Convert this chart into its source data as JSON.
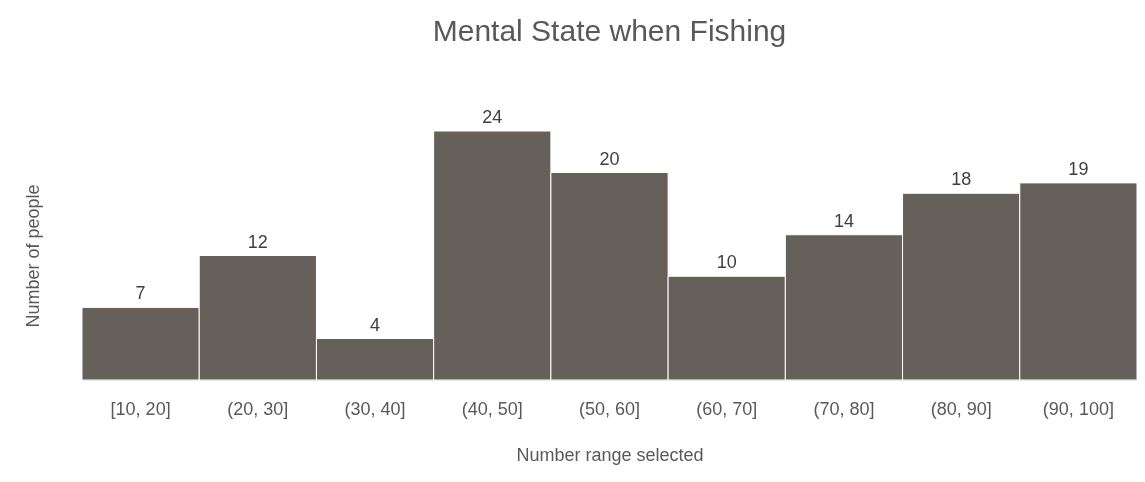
{
  "chart_data": {
    "type": "bar",
    "title": "Mental State when Fishing",
    "xlabel": "Number range selected",
    "ylabel": "Number of people",
    "categories": [
      "[10, 20]",
      "(20, 30]",
      "(30, 40]",
      "(40, 50]",
      "(50, 60]",
      "(60, 70]",
      "(70, 80]",
      "(80, 90]",
      "(90, 100]"
    ],
    "values": [
      7,
      12,
      4,
      24,
      20,
      10,
      14,
      18,
      19
    ],
    "color": "#656059",
    "data_labels": true
  }
}
